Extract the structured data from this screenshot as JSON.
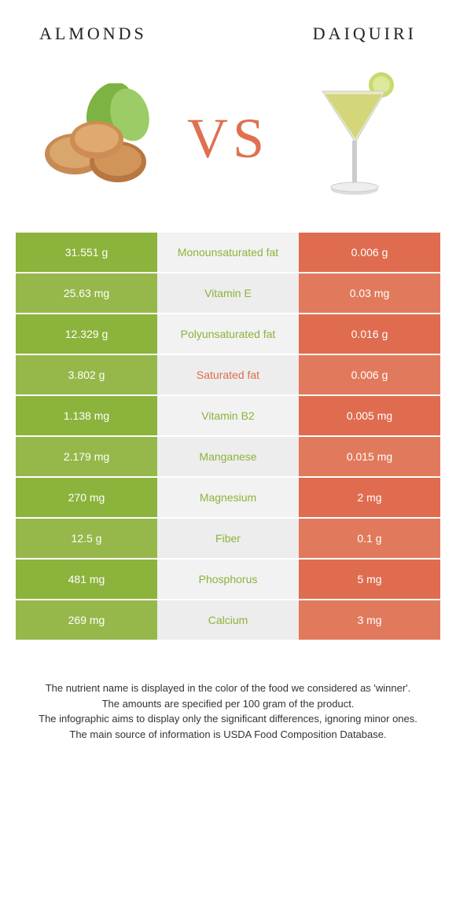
{
  "left_title": "Almonds",
  "right_title": "Daiquiri",
  "vs_label": "VS",
  "colors": {
    "green": "#8cb33c",
    "green_alt": "#96b84a",
    "orange": "#df6c4f",
    "orange_alt": "#e17a5c",
    "mid_bg": "#f2f2f2",
    "mid_bg_alt": "#ededed",
    "label_green": "#8cb33c",
    "label_orange": "#df6c4f",
    "vs_color": "#e07050"
  },
  "rows": [
    {
      "left": "31.551 g",
      "label": "Monounsaturated fat",
      "right": "0.006 g",
      "winner": "left"
    },
    {
      "left": "25.63 mg",
      "label": "Vitamin E",
      "right": "0.03 mg",
      "winner": "left"
    },
    {
      "left": "12.329 g",
      "label": "Polyunsaturated fat",
      "right": "0.016 g",
      "winner": "left"
    },
    {
      "left": "3.802 g",
      "label": "Saturated fat",
      "right": "0.006 g",
      "winner": "right"
    },
    {
      "left": "1.138 mg",
      "label": "Vitamin B2",
      "right": "0.005 mg",
      "winner": "left"
    },
    {
      "left": "2.179 mg",
      "label": "Manganese",
      "right": "0.015 mg",
      "winner": "left"
    },
    {
      "left": "270 mg",
      "label": "Magnesium",
      "right": "2 mg",
      "winner": "left"
    },
    {
      "left": "12.5 g",
      "label": "Fiber",
      "right": "0.1 g",
      "winner": "left"
    },
    {
      "left": "481 mg",
      "label": "Phosphorus",
      "right": "5 mg",
      "winner": "left"
    },
    {
      "left": "269 mg",
      "label": "Calcium",
      "right": "3 mg",
      "winner": "left"
    }
  ],
  "footnotes": [
    "The nutrient name is displayed in the color of the food we considered as 'winner'.",
    "The amounts are specified per 100 gram of the product.",
    "The infographic aims to display only the significant differences, ignoring minor ones.",
    "The main source of information is USDA Food Composition Database."
  ]
}
